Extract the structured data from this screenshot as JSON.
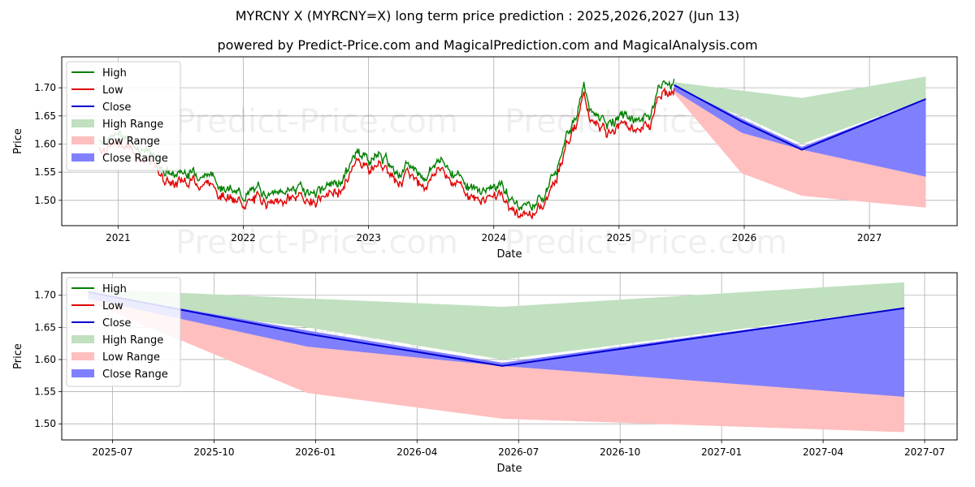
{
  "header": {
    "title": "MYRCNY X (MYRCNY=X) long term price prediction : 2025,2026,2027 (Jun 13)",
    "subtitle": "powered by Predict-Price.com and MagicalPrediction.com and MagicalAnalysis.com"
  },
  "watermark": "Predict-Price.com",
  "colors": {
    "high": "#008000",
    "low": "#e00000",
    "close": "#0000d0",
    "high_range": "#c0e0c0",
    "low_range": "#ffbfbf",
    "close_range": "#8080ff"
  },
  "chart_data": [
    {
      "type": "line",
      "panel": "top",
      "xlabel": "Date",
      "ylabel": "Price",
      "xlim": [
        2020.55,
        2027.7
      ],
      "ylim": [
        1.455,
        1.755
      ],
      "xticks": [
        {
          "value": 2021,
          "label": "2021"
        },
        {
          "value": 2022,
          "label": "2022"
        },
        {
          "value": 2023,
          "label": "2023"
        },
        {
          "value": 2024,
          "label": "2024"
        },
        {
          "value": 2025,
          "label": "2025"
        },
        {
          "value": 2026,
          "label": "2026"
        },
        {
          "value": 2027,
          "label": "2027"
        }
      ],
      "yticks": [
        {
          "value": 1.5,
          "label": "1.50"
        },
        {
          "value": 1.55,
          "label": "1.55"
        },
        {
          "value": 1.6,
          "label": "1.60"
        },
        {
          "value": 1.65,
          "label": "1.65"
        },
        {
          "value": 1.7,
          "label": "1.70"
        }
      ],
      "legend": [
        "High",
        "Low",
        "Close",
        "High Range",
        "Low Range",
        "Close Range"
      ],
      "history_close": {
        "x": [
          2020.85,
          2020.95,
          2021.05,
          2021.15,
          2021.25,
          2021.35,
          2021.45,
          2021.55,
          2021.65,
          2021.75,
          2021.85,
          2021.95,
          2022.05,
          2022.15,
          2022.25,
          2022.35,
          2022.45,
          2022.55,
          2022.65,
          2022.75,
          2022.85,
          2022.92,
          2023.0,
          2023.08,
          2023.15,
          2023.25,
          2023.35,
          2023.45,
          2023.55,
          2023.65,
          2023.75,
          2023.85,
          2023.95,
          2024.05,
          2024.15,
          2024.25,
          2024.32,
          2024.4,
          2024.5,
          2024.58,
          2024.66,
          2024.72,
          2024.8,
          2024.88,
          2024.95,
          2025.05,
          2025.15,
          2025.25,
          2025.32,
          2025.38,
          2025.44
        ],
        "values": [
          1.6,
          1.605,
          1.61,
          1.59,
          1.575,
          1.55,
          1.535,
          1.545,
          1.54,
          1.535,
          1.52,
          1.5,
          1.505,
          1.51,
          1.5,
          1.51,
          1.515,
          1.505,
          1.515,
          1.52,
          1.55,
          1.585,
          1.565,
          1.575,
          1.56,
          1.545,
          1.55,
          1.535,
          1.565,
          1.55,
          1.53,
          1.51,
          1.515,
          1.52,
          1.49,
          1.48,
          1.49,
          1.505,
          1.545,
          1.62,
          1.645,
          1.69,
          1.64,
          1.63,
          1.635,
          1.64,
          1.635,
          1.645,
          1.695,
          1.7,
          1.705
        ]
      },
      "forecast": {
        "x": [
          2025.44,
          2025.98,
          2026.46,
          2027.45
        ],
        "close": [
          1.705,
          1.64,
          1.59,
          1.68
        ],
        "high_range": {
          "upper": [
            1.71,
            1.695,
            1.682,
            1.72
          ],
          "lower": [
            1.69,
            1.65,
            1.6,
            1.68
          ]
        },
        "low_range": {
          "upper": [
            1.7,
            1.62,
            1.595,
            1.545
          ],
          "lower": [
            1.69,
            1.548,
            1.508,
            1.487
          ]
        },
        "close_range": {
          "upper": [
            1.705,
            1.645,
            1.595,
            1.68
          ],
          "lower": [
            1.695,
            1.62,
            1.59,
            1.542
          ]
        }
      }
    },
    {
      "type": "line",
      "panel": "bottom",
      "xlabel": "Date",
      "ylabel": "Price",
      "xlim": [
        2025.375,
        2027.58
      ],
      "ylim": [
        1.475,
        1.735
      ],
      "xticks": [
        {
          "value": 2025.5,
          "label": "2025-07"
        },
        {
          "value": 2025.75,
          "label": "2025-10"
        },
        {
          "value": 2026.0,
          "label": "2026-01"
        },
        {
          "value": 2026.25,
          "label": "2026-04"
        },
        {
          "value": 2026.5,
          "label": "2026-07"
        },
        {
          "value": 2026.75,
          "label": "2026-10"
        },
        {
          "value": 2027.0,
          "label": "2027-01"
        },
        {
          "value": 2027.25,
          "label": "2027-04"
        },
        {
          "value": 2027.5,
          "label": "2027-07"
        }
      ],
      "yticks": [
        {
          "value": 1.5,
          "label": "1.50"
        },
        {
          "value": 1.55,
          "label": "1.55"
        },
        {
          "value": 1.6,
          "label": "1.60"
        },
        {
          "value": 1.65,
          "label": "1.65"
        },
        {
          "value": 1.7,
          "label": "1.70"
        }
      ],
      "legend": [
        "High",
        "Low",
        "Close",
        "High Range",
        "Low Range",
        "Close Range"
      ],
      "forecast": {
        "x": [
          2025.44,
          2025.98,
          2026.46,
          2027.45
        ],
        "close": [
          1.705,
          1.64,
          1.59,
          1.68
        ],
        "high_range": {
          "upper": [
            1.71,
            1.695,
            1.682,
            1.72
          ],
          "lower": [
            1.69,
            1.65,
            1.6,
            1.68
          ]
        },
        "low_range": {
          "upper": [
            1.7,
            1.62,
            1.595,
            1.545
          ],
          "lower": [
            1.69,
            1.548,
            1.508,
            1.487
          ]
        },
        "close_range": {
          "upper": [
            1.705,
            1.645,
            1.595,
            1.68
          ],
          "lower": [
            1.695,
            1.62,
            1.59,
            1.542
          ]
        }
      }
    }
  ]
}
